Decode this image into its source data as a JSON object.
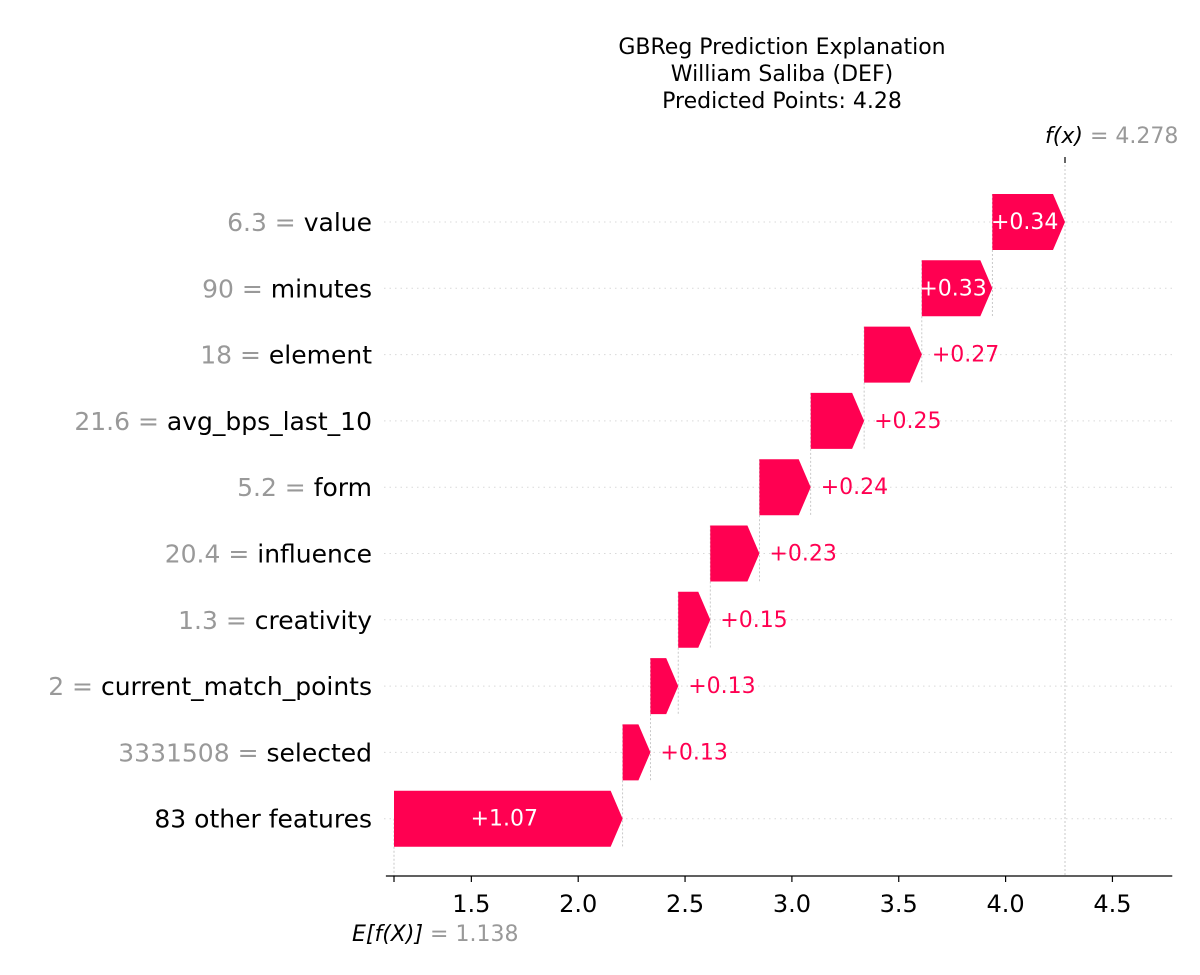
{
  "chart_data": {
    "type": "waterfall",
    "title_lines": [
      "GBReg Prediction Explanation",
      "William Saliba (DEF)",
      "Predicted Points: 4.28"
    ],
    "base_value": 1.138,
    "base_label": "E[f(X)]",
    "base_value_text": "= 1.138",
    "final_value": 4.278,
    "final_label": "f(x)",
    "final_value_text": "= 4.278",
    "xlim": [
      1.1,
      4.78
    ],
    "xticks": [
      1.5,
      2.0,
      2.5,
      3.0,
      3.5,
      4.0,
      4.5
    ],
    "xtick_labels": [
      "1.5",
      "2.0",
      "2.5",
      "3.0",
      "3.5",
      "4.0",
      "4.5"
    ],
    "positive_color": "#ff0051",
    "feature_value_color": "#999999",
    "features": [
      {
        "value_text": "6.3 =",
        "name": "value",
        "contribution": 0.34,
        "label": "+0.34"
      },
      {
        "value_text": "90 =",
        "name": "minutes",
        "contribution": 0.33,
        "label": "+0.33"
      },
      {
        "value_text": "18 =",
        "name": "element",
        "contribution": 0.27,
        "label": "+0.27"
      },
      {
        "value_text": "21.6 =",
        "name": "avg_bps_last_10",
        "contribution": 0.25,
        "label": "+0.25"
      },
      {
        "value_text": "5.2 =",
        "name": "form",
        "contribution": 0.24,
        "label": "+0.24"
      },
      {
        "value_text": "20.4 =",
        "name": "influence",
        "contribution": 0.23,
        "label": "+0.23"
      },
      {
        "value_text": "1.3 =",
        "name": "creativity",
        "contribution": 0.15,
        "label": "+0.15"
      },
      {
        "value_text": "2 =",
        "name": "current_match_points",
        "contribution": 0.13,
        "label": "+0.13"
      },
      {
        "value_text": "3331508 =",
        "name": "selected",
        "contribution": 0.13,
        "label": "+0.13"
      },
      {
        "value_text": "",
        "name": "83 other features",
        "contribution": 1.07,
        "label": "+1.07"
      }
    ]
  }
}
